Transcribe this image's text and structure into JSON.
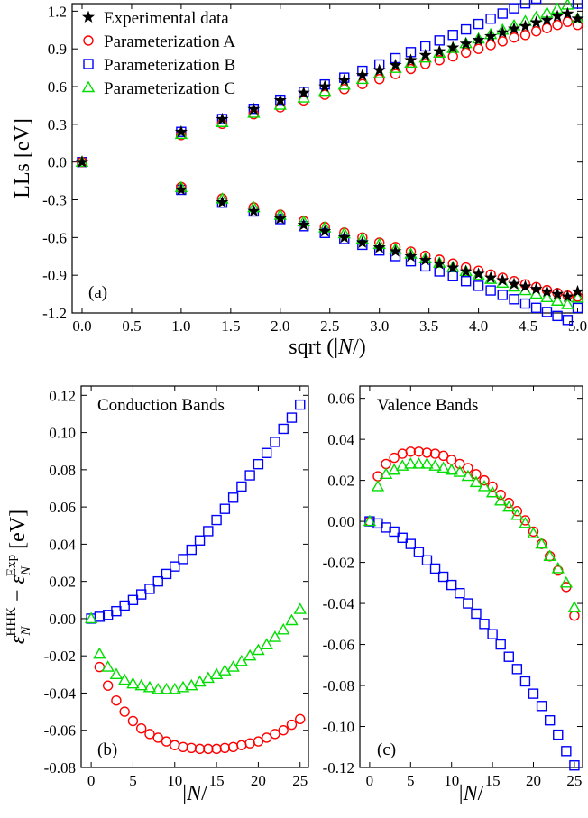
{
  "colors": {
    "experimental": "#000000",
    "param_a": "#ff0000",
    "param_b": "#0000ff",
    "param_c": "#00dd00"
  },
  "chart_data": [
    {
      "id": "a",
      "type": "scatter",
      "panel_label": "(a)",
      "xlabel": "sqrt (|N/)",
      "ylabel": "LLs [eV]",
      "xlim": [
        -0.1,
        5.05
      ],
      "ylim": [
        -1.2,
        1.26
      ],
      "xticks": [
        0.0,
        0.5,
        1.0,
        1.5,
        2.0,
        2.5,
        3.0,
        3.5,
        4.0,
        4.5,
        5.0
      ],
      "xtick_labels": [
        "0.0",
        "0.5",
        "1.0",
        "1.5",
        "2.0",
        "2.5",
        "3.0",
        "3.5",
        "4.0",
        "4.5",
        "5.0"
      ],
      "yticks": [
        1.2,
        0.9,
        0.6,
        0.3,
        0.0,
        -0.3,
        -0.6,
        -0.9,
        -1.2
      ],
      "ytick_labels": [
        "1.2",
        "0.9",
        "0.6",
        "0.3",
        "0.0",
        "-0.3",
        "-0.6",
        "-0.9",
        "-1.2"
      ],
      "legend": {
        "position": "top-left",
        "entries": [
          "Experimental data",
          "Parameterization A",
          "Parameterization B",
          "Parameterization C"
        ]
      },
      "series": [
        {
          "name": "Experimental data",
          "marker": "star",
          "cb": [
            0,
            0.24,
            0.34,
            0.42,
            0.49,
            0.55,
            0.6,
            0.65,
            0.69,
            0.73,
            0.77,
            0.81,
            0.85,
            0.88,
            0.91,
            0.94,
            0.97,
            1,
            1.03,
            1.06,
            1.08,
            1.11,
            1.13,
            1.16,
            1.18,
            1.14
          ],
          "vb": [
            0,
            -0.22,
            -0.32,
            -0.39,
            -0.45,
            -0.5,
            -0.55,
            -0.6,
            -0.64,
            -0.68,
            -0.71,
            -0.75,
            -0.78,
            -0.81,
            -0.84,
            -0.87,
            -0.89,
            -0.92,
            -0.94,
            -0.97,
            -0.99,
            -1.01,
            -1.03,
            -1.05,
            -1.07,
            -1.03
          ]
        },
        {
          "name": "Parameterization A",
          "marker": "circle",
          "cb": [
            0,
            0.214,
            0.304,
            0.38,
            0.435,
            0.49,
            0.535,
            0.58,
            0.62,
            0.66,
            0.7,
            0.74,
            0.78,
            0.81,
            0.84,
            0.87,
            0.9,
            0.93,
            0.96,
            0.99,
            1.01,
            1.04,
            1.065,
            1.09,
            1.115,
            1.09
          ],
          "vb": [
            0,
            -0.198,
            -0.29,
            -0.36,
            -0.418,
            -0.469,
            -0.515,
            -0.56,
            -0.6,
            -0.64,
            -0.675,
            -0.712,
            -0.745,
            -0.776,
            -0.807,
            -0.838,
            -0.864,
            -0.894,
            -0.92,
            -0.947,
            -0.972,
            -0.994,
            -1.018,
            -1.041,
            -1.062,
            -1.07
          ]
        },
        {
          "name": "Parameterization B",
          "marker": "square",
          "cb": [
            0,
            0.24,
            0.342,
            0.423,
            0.495,
            0.558,
            0.617,
            0.671,
            0.725,
            0.776,
            0.826,
            0.874,
            0.92,
            0.967,
            1.011,
            1.055,
            1.098,
            1.14,
            1.181,
            1.223,
            1.262,
            1.3,
            1.338,
            1.375,
            1.412,
            1.26
          ],
          "vb": [
            0,
            -0.221,
            -0.323,
            -0.393,
            -0.454,
            -0.51,
            -0.564,
            -0.612,
            -0.658,
            -0.703,
            -0.748,
            -0.789,
            -0.83,
            -0.87,
            -0.908,
            -0.947,
            -0.984,
            -1.021,
            -1.056,
            -1.091,
            -1.125,
            -1.159,
            -1.192,
            -1.224,
            -1.256,
            -1.16
          ]
        },
        {
          "name": "Parameterization C",
          "marker": "triangle",
          "cb": [
            0,
            0.221,
            0.315,
            0.389,
            0.453,
            0.51,
            0.563,
            0.612,
            0.658,
            0.703,
            0.746,
            0.788,
            0.828,
            0.867,
            0.905,
            0.943,
            0.98,
            1.015,
            1.05,
            1.085,
            1.119,
            1.152,
            1.185,
            1.218,
            1.25,
            1.14
          ],
          "vb": [
            0,
            -0.203,
            -0.293,
            -0.362,
            -0.422,
            -0.475,
            -0.523,
            -0.569,
            -0.612,
            -0.654,
            -0.693,
            -0.731,
            -0.767,
            -0.803,
            -0.836,
            -0.869,
            -0.901,
            -0.932,
            -0.962,
            -0.992,
            -1.021,
            -1.049,
            -1.077,
            -1.105,
            -1.132,
            -1.08
          ]
        }
      ]
    },
    {
      "id": "b",
      "type": "scatter",
      "panel_label": "(b)",
      "annotation": "Conduction Bands",
      "xlabel": "|N/",
      "ylabel": "εNHHK − εNExp [eV]",
      "xlim": [
        -1.2,
        26
      ],
      "ylim": [
        -0.08,
        0.125
      ],
      "xticks": [
        0,
        5,
        10,
        15,
        20,
        25
      ],
      "xtick_labels": [
        "0",
        "5",
        "10",
        "15",
        "20",
        "25"
      ],
      "yticks": [
        0.12,
        0.1,
        0.08,
        0.06,
        0.04,
        0.02,
        0.0,
        -0.02,
        -0.04,
        -0.06,
        -0.08
      ],
      "ytick_labels": [
        "0.12",
        "0.10",
        "0.08",
        "0.06",
        "0.04",
        "0.02",
        "0.00",
        "-0.02",
        "-0.04",
        "-0.06",
        "-0.08"
      ],
      "series": [
        {
          "name": "Parameterization A",
          "marker": "circle",
          "x": [
            1,
            2,
            3,
            4,
            5,
            6,
            7,
            8,
            9,
            10,
            11,
            12,
            13,
            14,
            15,
            16,
            17,
            18,
            19,
            20,
            21,
            22,
            23,
            24,
            25
          ],
          "y": [
            -0.026,
            -0.036,
            -0.044,
            -0.05,
            -0.055,
            -0.059,
            -0.062,
            -0.064,
            -0.066,
            -0.068,
            -0.069,
            -0.0695,
            -0.07,
            -0.07,
            -0.07,
            -0.0695,
            -0.069,
            -0.068,
            -0.067,
            -0.066,
            -0.064,
            -0.062,
            -0.06,
            -0.057,
            -0.054
          ]
        },
        {
          "name": "Parameterization B",
          "marker": "square",
          "x": [
            0,
            1,
            2,
            3,
            4,
            5,
            6,
            7,
            8,
            9,
            10,
            11,
            12,
            13,
            14,
            15,
            16,
            17,
            18,
            19,
            20,
            21,
            22,
            23,
            24,
            25
          ],
          "y": [
            0.0,
            0.001,
            0.002,
            0.004,
            0.007,
            0.01,
            0.013,
            0.016,
            0.02,
            0.024,
            0.028,
            0.032,
            0.037,
            0.042,
            0.047,
            0.053,
            0.059,
            0.065,
            0.071,
            0.077,
            0.083,
            0.089,
            0.095,
            0.102,
            0.108,
            0.115
          ]
        },
        {
          "name": "Parameterization C",
          "marker": "triangle",
          "x": [
            0,
            1,
            2,
            3,
            4,
            5,
            6,
            7,
            8,
            9,
            10,
            11,
            12,
            13,
            14,
            15,
            16,
            17,
            18,
            19,
            20,
            21,
            22,
            23,
            24,
            25
          ],
          "y": [
            0.0,
            -0.019,
            -0.026,
            -0.03,
            -0.033,
            -0.035,
            -0.036,
            -0.037,
            -0.038,
            -0.038,
            -0.038,
            -0.037,
            -0.036,
            -0.034,
            -0.032,
            -0.03,
            -0.028,
            -0.026,
            -0.023,
            -0.02,
            -0.017,
            -0.014,
            -0.01,
            -0.006,
            -0.001,
            0.005
          ]
        }
      ]
    },
    {
      "id": "c",
      "type": "scatter",
      "panel_label": "(c)",
      "annotation": "Valence Bands",
      "xlabel": "|N/",
      "ylabel": "",
      "xlim": [
        -1.2,
        26
      ],
      "ylim": [
        -0.12,
        0.066
      ],
      "xticks": [
        0,
        5,
        10,
        15,
        20,
        25
      ],
      "xtick_labels": [
        "0",
        "5",
        "10",
        "15",
        "20",
        "25"
      ],
      "yticks": [
        0.06,
        0.04,
        0.02,
        0.0,
        -0.02,
        -0.04,
        -0.06,
        -0.08,
        -0.1,
        -0.12
      ],
      "ytick_labels": [
        "0.06",
        "0.04",
        "0.02",
        "0.00",
        "-0.02",
        "-0.04",
        "-0.06",
        "-0.08",
        "-0.10",
        "-0.12"
      ],
      "series": [
        {
          "name": "Parameterization A",
          "marker": "circle",
          "x": [
            0,
            1,
            2,
            3,
            4,
            5,
            6,
            7,
            8,
            9,
            10,
            11,
            12,
            13,
            14,
            15,
            16,
            17,
            18,
            19,
            20,
            21,
            22,
            23,
            24,
            25
          ],
          "y": [
            0.0,
            0.022,
            0.028,
            0.031,
            0.033,
            0.034,
            0.034,
            0.0335,
            0.033,
            0.032,
            0.03,
            0.028,
            0.026,
            0.023,
            0.02,
            0.017,
            0.013,
            0.009,
            0.005,
            0.0005,
            -0.005,
            -0.011,
            -0.017,
            -0.024,
            -0.032,
            -0.046
          ]
        },
        {
          "name": "Parameterization B",
          "marker": "square",
          "x": [
            0,
            1,
            2,
            3,
            4,
            5,
            6,
            7,
            8,
            9,
            10,
            11,
            12,
            13,
            14,
            15,
            16,
            17,
            18,
            19,
            20,
            21,
            22,
            23,
            24,
            25
          ],
          "y": [
            0.0,
            -0.001,
            -0.003,
            -0.005,
            -0.008,
            -0.011,
            -0.015,
            -0.019,
            -0.023,
            -0.027,
            -0.031,
            -0.035,
            -0.04,
            -0.045,
            -0.05,
            -0.055,
            -0.06,
            -0.066,
            -0.072,
            -0.078,
            -0.084,
            -0.09,
            -0.097,
            -0.104,
            -0.112,
            -0.119
          ]
        },
        {
          "name": "Parameterization C",
          "marker": "triangle",
          "x": [
            0,
            1,
            2,
            3,
            4,
            5,
            6,
            7,
            8,
            9,
            10,
            11,
            12,
            13,
            14,
            15,
            16,
            17,
            18,
            19,
            20,
            21,
            22,
            23,
            24,
            25
          ],
          "y": [
            0.0,
            0.017,
            0.023,
            0.025,
            0.027,
            0.028,
            0.028,
            0.028,
            0.027,
            0.026,
            0.025,
            0.024,
            0.022,
            0.019,
            0.017,
            0.014,
            0.01,
            0.007,
            0.003,
            -0.001,
            -0.006,
            -0.011,
            -0.017,
            -0.023,
            -0.03,
            -0.042
          ]
        }
      ]
    }
  ]
}
